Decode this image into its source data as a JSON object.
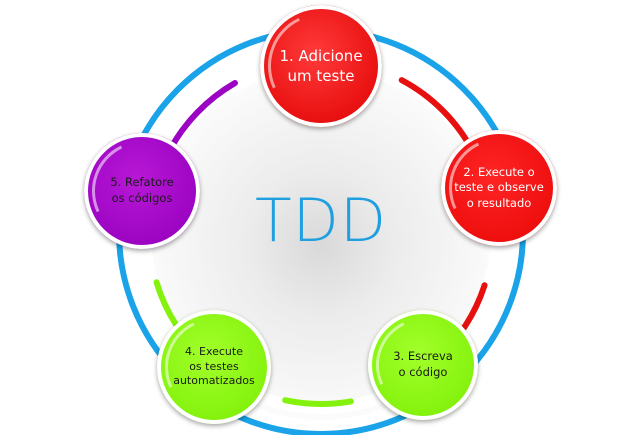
{
  "title": "TDD",
  "steps": [
    {
      "label": "1. Adicione\num teste",
      "color": "#e80f0f"
    },
    {
      "label": "2. Execute o\nteste e observe\no resultado",
      "color": "#ee0e0e"
    },
    {
      "label": "3. Escreva\no código",
      "color": "#84f20d"
    },
    {
      "label": "4. Execute\nos testes\nautomatizados",
      "color": "#84f20d"
    },
    {
      "label": "5. Refatore\nos códigos",
      "color": "#9b04c2"
    }
  ],
  "colors": {
    "title": "#1f9fe0",
    "outer_ring": "#1aa3e8",
    "arc_red": "#e80f0f",
    "arc_green": "#84f20d",
    "arc_purple": "#9b04c2"
  }
}
